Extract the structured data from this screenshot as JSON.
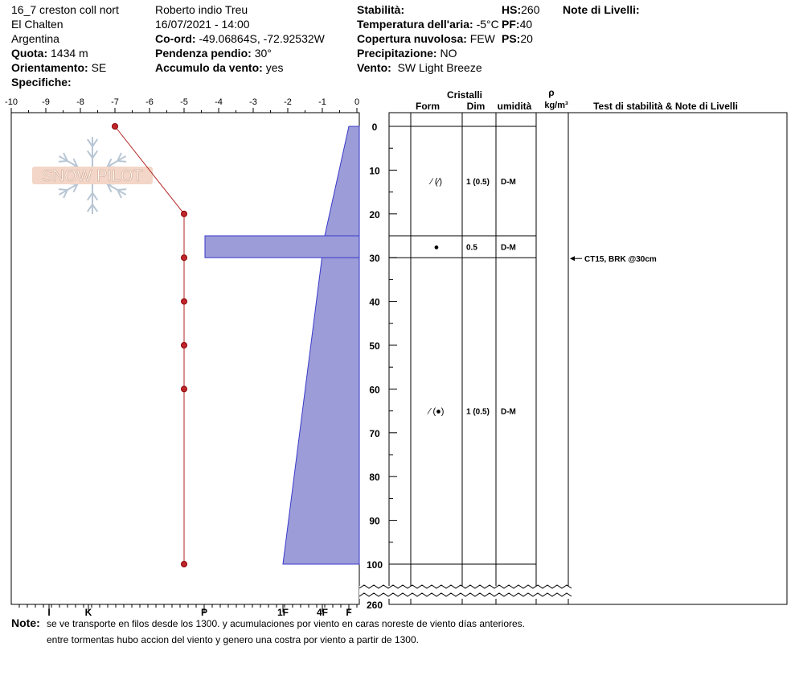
{
  "header": {
    "site": "16_7 creston coll nort",
    "area": "El Chalten",
    "country": "Argentina",
    "elevation_label": "Quota:",
    "elevation": "1434 m",
    "aspect_label": "Orientamento:",
    "aspect": "SE",
    "specifics_label": "Specifiche:",
    "observer": "Roberto indio Treu",
    "datetime": "16/07/2021 - 14:00",
    "coords_label": "Co-ord:",
    "coords": "-49.06864S, -72.92532W",
    "slope_label": "Pendenza pendio:",
    "slope": "30°",
    "wind_loading_label": "Accumulo da vento:",
    "wind_loading": "yes",
    "stability_label": "Stabilità:",
    "stability": "",
    "air_temp_label": "Temperatura dell'aria:",
    "air_temp": "-5°C",
    "sky_label": "Copertura nuvolosa:",
    "sky": "FEW",
    "precip_label": "Precipitazione:",
    "precip": "NO",
    "wind_label": "Vento:",
    "wind": "SW Light Breeze",
    "hs_label": "HS:",
    "hs": "260",
    "pf_label": "PF:",
    "pf": "40",
    "ps_label": "PS:",
    "ps": "20",
    "layer_notes_label": "Note di Livelli:"
  },
  "watermark": "SNOW PILOT",
  "columns": {
    "crystals": "Cristalli",
    "form": "Form",
    "size": "Dim",
    "moisture": "umidità",
    "density_symbol": "ρ",
    "density_unit": "kg/m³",
    "tests": "Test di stabilità & Note di Livelli"
  },
  "footer": {
    "label": "Note:",
    "line1": "se ve transporte en filos desde los 1300. y acumulaciones por viento en caras noreste de viento días anteriores.",
    "line2": "entre tormentas hubo accion del viento y genero una costra por viento a partir de 1300."
  },
  "chart_data": {
    "type": "snow_profile",
    "temperature_axis": {
      "ticks": [
        -10,
        -9,
        -8,
        -7,
        -6,
        -5,
        -4,
        -3,
        -2,
        -1,
        0
      ],
      "range": [
        -10,
        0
      ]
    },
    "hardness_axis": {
      "ticks": [
        "I",
        "K",
        "P",
        "1F",
        "4F",
        "F"
      ]
    },
    "depth_axis": {
      "ticks": [
        0,
        10,
        20,
        30,
        40,
        50,
        60,
        70,
        80,
        90,
        100,
        260
      ],
      "unit": "cm"
    },
    "temperature_profile": [
      {
        "depth": 0,
        "temp": -7
      },
      {
        "depth": 20,
        "temp": -5
      },
      {
        "depth": 30,
        "temp": -5
      },
      {
        "depth": 40,
        "temp": -5
      },
      {
        "depth": 50,
        "temp": -5
      },
      {
        "depth": 60,
        "temp": -5
      },
      {
        "depth": 100,
        "temp": -5
      }
    ],
    "hardness_profile": {
      "series": [
        {
          "depth": 0,
          "hardness": "F-"
        },
        {
          "depth": 25,
          "hardness": "F+"
        },
        {
          "depth": 100,
          "hardness": "1F"
        }
      ],
      "layer": {
        "top": 25,
        "bottom": 30,
        "hardness": "P+"
      }
    },
    "layer_boundaries": [
      0,
      25,
      30,
      100
    ],
    "layers": [
      {
        "top": 0,
        "bottom": 25,
        "form": "⁄ (⁄)",
        "size": "1 (0.5)",
        "moisture": "D-M",
        "form_depth": 12.5
      },
      {
        "top": 25,
        "bottom": 30,
        "form": "●",
        "size": "0.5",
        "moisture": "D-M",
        "form_depth": 27.5
      },
      {
        "top": 30,
        "bottom": 100,
        "form": "⁄ (●)",
        "size": "1 (0.5)",
        "moisture": "D-M",
        "form_depth": 65
      }
    ],
    "tests": [
      {
        "depth": 30,
        "label": "CT15, BRK @30cm"
      }
    ]
  }
}
